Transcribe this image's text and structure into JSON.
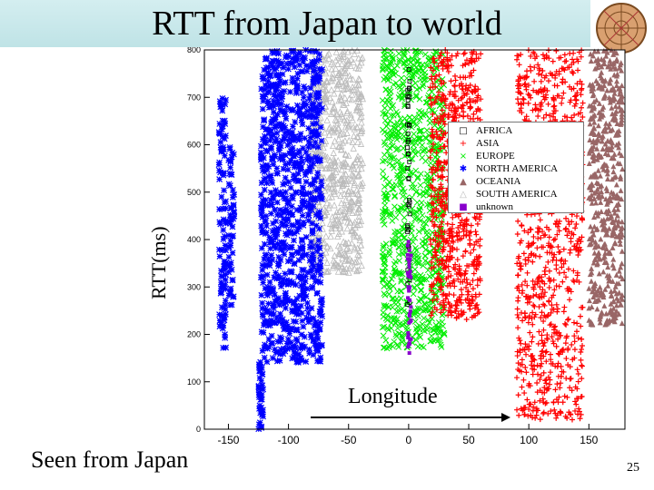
{
  "slide": {
    "title": "RTT from Japan to world",
    "footer_left": "Seen from Japan",
    "page_number": "25",
    "annotation": "Longitude"
  },
  "chart_data": {
    "type": "scatter",
    "title": "RTT from Japan to world",
    "xlabel": "",
    "ylabel": "RTT(ms)",
    "xlim": [
      -170,
      180
    ],
    "ylim": [
      0,
      800
    ],
    "x_ticks": [
      -150,
      -100,
      -50,
      0,
      50,
      100,
      150
    ],
    "y_ticks": [
      0,
      100,
      200,
      300,
      400,
      500,
      600,
      700,
      800
    ],
    "legend_placement": "top-right",
    "grid": false,
    "series": [
      {
        "name": "AFRICA",
        "color": "#000000",
        "marker": "square-open",
        "clusters": [
          {
            "x_range": [
              -1,
              1
            ],
            "y_range": [
              200,
              800
            ]
          }
        ]
      },
      {
        "name": "ASIA",
        "color": "#ff0000",
        "marker": "plus",
        "clusters": [
          {
            "x_range": [
              18,
              60
            ],
            "y_range": [
              230,
              800
            ]
          },
          {
            "x_range": [
              90,
              145
            ],
            "y_range": [
              20,
              800
            ]
          }
        ]
      },
      {
        "name": "EUROPE",
        "color": "#00ee00",
        "marker": "x",
        "clusters": [
          {
            "x_range": [
              -22,
              30
            ],
            "y_range": [
              170,
              800
            ]
          }
        ]
      },
      {
        "name": "NORTH AMERICA",
        "color": "#0000ff",
        "marker": "star",
        "clusters": [
          {
            "x_range": [
              -158,
              -152
            ],
            "y_range": [
              170,
              700
            ]
          },
          {
            "x_range": [
              -123,
              -72
            ],
            "y_range": [
              140,
              800
            ]
          },
          {
            "x_range": [
              -125,
              -121
            ],
            "y_range": [
              0,
              150
            ]
          },
          {
            "x_range": [
              -150,
              -145
            ],
            "y_range": [
              250,
              600
            ]
          }
        ]
      },
      {
        "name": "OCEANIA",
        "color": "#996666",
        "marker": "triangle",
        "clusters": [
          {
            "x_range": [
              150,
              178
            ],
            "y_range": [
              220,
              800
            ]
          }
        ]
      },
      {
        "name": "SOUTH AMERICA",
        "color": "#bbbbbb",
        "marker": "triangle-open",
        "clusters": [
          {
            "x_range": [
              -82,
              -38
            ],
            "y_range": [
              330,
              800
            ]
          }
        ]
      },
      {
        "name": "unknown",
        "color": "#8800cc",
        "marker": "square",
        "clusters": [
          {
            "x_range": [
              -1,
              2
            ],
            "y_range": [
              150,
              400
            ]
          }
        ]
      }
    ]
  }
}
